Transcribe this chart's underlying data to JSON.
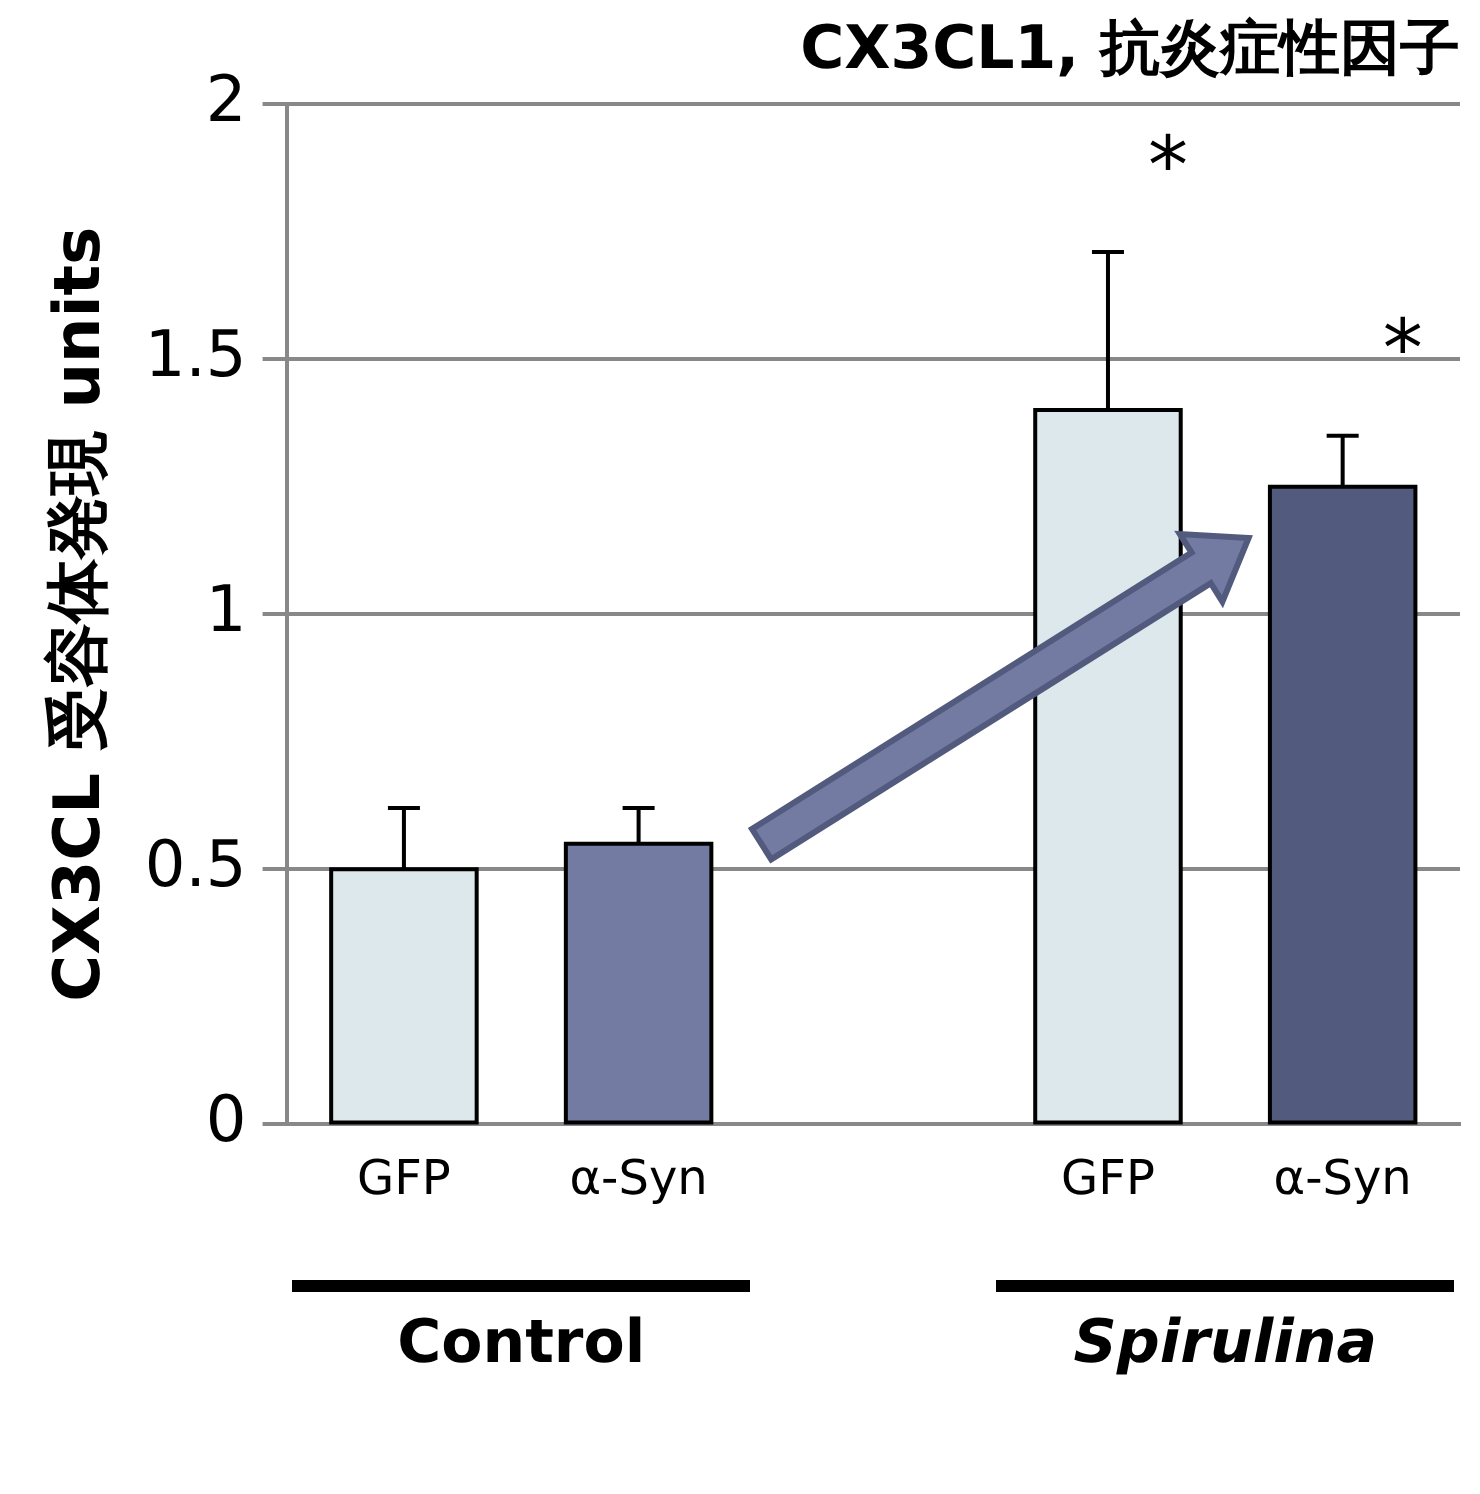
{
  "chart_data": {
    "type": "bar",
    "title": "CX3CL1, 抗炎症性因子",
    "ylabel": "CX3CL 受容体発現 units",
    "categories": [
      "GFP",
      "α-Syn",
      null,
      "GFP",
      "α-Syn"
    ],
    "values": [
      0.5,
      0.55,
      null,
      1.4,
      1.25
    ],
    "colors": [
      "#dde8ec",
      "#737ba3",
      "#ffffff",
      "#dde8ec",
      "#525a7e"
    ],
    "errors": [
      [
        0.5,
        0.62
      ],
      [
        0.55,
        0.62
      ],
      null,
      [
        1.4,
        1.71
      ],
      [
        1.25,
        1.35
      ]
    ],
    "ylim": [
      0,
      2
    ],
    "yticks": [
      0,
      0.5,
      1,
      1.5,
      2
    ],
    "grid": "y",
    "legend": false,
    "annotations": [
      "Control",
      "Spirulina",
      "*",
      "*"
    ]
  }
}
